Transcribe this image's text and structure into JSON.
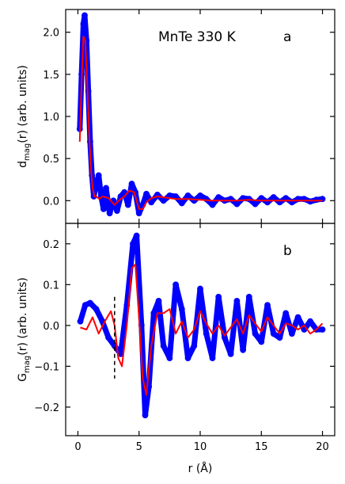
{
  "chart_data": [
    {
      "type": "scatter",
      "panel_label": "a",
      "title": "MnTe   330 K",
      "xlabel": "",
      "ylabel_main": "d",
      "ylabel_sub": "mag",
      "ylabel_rest": "(r) (arb. units)",
      "xlim": [
        -1,
        21
      ],
      "ylim": [
        -0.27,
        2.27
      ],
      "yticks": [
        0.0,
        0.5,
        1.0,
        1.5,
        2.0
      ],
      "ytick_labels": [
        "0.0",
        "0.5",
        "1.0",
        "1.5",
        "2.0"
      ],
      "series": [
        {
          "role": "data",
          "style": "open-circles",
          "color": "#0000ff",
          "x": [
            0.15,
            0.3,
            0.45,
            0.55,
            0.7,
            0.85,
            1.0,
            1.15,
            1.3,
            1.5,
            1.7,
            1.9,
            2.1,
            2.3,
            2.6,
            2.9,
            3.2,
            3.5,
            3.8,
            4.1,
            4.4,
            4.7,
            5.0,
            5.3,
            5.6,
            6.0,
            6.5,
            7.0,
            7.5,
            8.0,
            8.5,
            9.0,
            9.5,
            10.0,
            10.5,
            11.0,
            11.5,
            12.0,
            12.5,
            13.0,
            13.5,
            14.0,
            14.5,
            15.0,
            15.5,
            16.0,
            16.5,
            17.0,
            17.5,
            18.0,
            18.5,
            19.0,
            19.5,
            20.0
          ],
          "y": [
            0.85,
            1.5,
            2.1,
            2.2,
            1.9,
            1.3,
            0.7,
            0.3,
            0.05,
            0.2,
            0.3,
            0.05,
            -0.1,
            0.15,
            -0.15,
            0.0,
            -0.12,
            0.05,
            0.1,
            -0.05,
            0.2,
            0.1,
            -0.15,
            -0.05,
            0.08,
            -0.02,
            0.07,
            0.0,
            0.06,
            0.05,
            -0.03,
            0.06,
            0.0,
            0.06,
            0.02,
            -0.05,
            0.04,
            0.0,
            0.02,
            -0.04,
            0.03,
            0.02,
            -0.04,
            0.03,
            -0.02,
            0.04,
            -0.02,
            0.03,
            -0.02,
            0.02,
            0.02,
            -0.01,
            0.01,
            0.02
          ]
        },
        {
          "role": "fit",
          "style": "line",
          "color": "#ff0000",
          "x": [
            0.15,
            0.3,
            0.45,
            0.6,
            0.75,
            0.9,
            1.05,
            1.2,
            1.35,
            1.5,
            1.75,
            2.0,
            2.5,
            3.0,
            3.5,
            3.8,
            4.2,
            4.6,
            5.0,
            5.3,
            5.6,
            6.0,
            6.5,
            7.0,
            8.0,
            9.0,
            10.0,
            11.0,
            12.0,
            13.0,
            14.0,
            15.0,
            16.0,
            17.0,
            18.0,
            19.0,
            20.0
          ],
          "y": [
            0.7,
            1.4,
            1.95,
            1.9,
            1.45,
            0.85,
            0.4,
            0.15,
            0.05,
            0.05,
            0.02,
            0.05,
            0.03,
            -0.05,
            0.02,
            0.05,
            0.12,
            0.1,
            -0.1,
            -0.1,
            -0.02,
            0.03,
            0.05,
            0.04,
            0.02,
            0.02,
            0.01,
            0.0,
            0.0,
            0.0,
            0.01,
            0.0,
            0.0,
            0.0,
            0.0,
            0.0,
            0.0
          ]
        }
      ]
    },
    {
      "type": "scatter",
      "panel_label": "b",
      "xlabel": "r (Å)",
      "ylabel_main": "G",
      "ylabel_sub": "mag",
      "ylabel_rest": "(r) (arb. units)",
      "xlim": [
        -1,
        21
      ],
      "ylim": [
        -0.27,
        0.25
      ],
      "xticks": [
        0,
        5,
        10,
        15,
        20
      ],
      "xtick_labels": [
        "0",
        "5",
        "10",
        "15",
        "20"
      ],
      "yticks": [
        -0.2,
        -0.1,
        0.0,
        0.1,
        0.2
      ],
      "ytick_labels": [
        "−0.2",
        "−0.1",
        "0.0",
        "0.1",
        "0.2"
      ],
      "vline": {
        "x": 3.0,
        "ymin": -0.13,
        "ymax": 0.07,
        "style": "dashed",
        "color": "#000000"
      },
      "series": [
        {
          "role": "data",
          "style": "open-circles",
          "color": "#0000ff",
          "x": [
            0.2,
            0.6,
            1.0,
            1.5,
            2.0,
            2.5,
            3.0,
            3.5,
            4.0,
            4.5,
            4.8,
            5.2,
            5.5,
            5.8,
            6.2,
            6.6,
            7.0,
            7.5,
            8.0,
            8.5,
            9.0,
            9.5,
            10.0,
            10.5,
            11.0,
            11.5,
            12.0,
            12.5,
            13.0,
            13.5,
            14.0,
            14.5,
            15.0,
            15.5,
            16.0,
            16.5,
            17.0,
            17.5,
            18.0,
            18.5,
            19.0,
            19.5,
            20.0
          ],
          "y": [
            0.01,
            0.05,
            0.055,
            0.04,
            0.01,
            -0.03,
            -0.05,
            -0.07,
            0.05,
            0.2,
            0.22,
            0.0,
            -0.22,
            -0.15,
            0.03,
            0.06,
            -0.05,
            -0.08,
            0.1,
            0.04,
            -0.08,
            -0.05,
            0.09,
            -0.02,
            -0.08,
            0.07,
            -0.03,
            -0.07,
            0.06,
            -0.06,
            0.07,
            -0.02,
            -0.04,
            0.05,
            -0.02,
            -0.03,
            0.03,
            -0.02,
            0.02,
            -0.01,
            0.01,
            -0.01,
            -0.01
          ]
        },
        {
          "role": "fit",
          "style": "line",
          "color": "#ff0000",
          "x": [
            0.2,
            0.7,
            1.2,
            1.7,
            2.2,
            2.7,
            3.0,
            3.3,
            3.6,
            4.0,
            4.4,
            4.7,
            5.0,
            5.3,
            5.6,
            6.0,
            6.5,
            7.0,
            7.5,
            8.0,
            8.5,
            9.0,
            9.5,
            10.0,
            10.5,
            11.0,
            11.5,
            12.0,
            12.5,
            13.0,
            13.5,
            14.0,
            14.5,
            15.0,
            15.5,
            16.0,
            16.5,
            17.0,
            17.5,
            18.0,
            18.5,
            19.0,
            19.5,
            20.0
          ],
          "y": [
            -0.005,
            -0.01,
            0.02,
            -0.02,
            0.01,
            0.035,
            0.0,
            -0.08,
            -0.1,
            0.0,
            0.14,
            0.15,
            0.02,
            -0.13,
            -0.17,
            -0.05,
            0.03,
            0.03,
            0.04,
            -0.02,
            0.01,
            -0.03,
            -0.01,
            0.035,
            0.005,
            -0.02,
            0.0,
            -0.025,
            -0.005,
            0.015,
            -0.02,
            0.025,
            0.005,
            -0.015,
            0.02,
            0.0,
            -0.02,
            0.005,
            0.0,
            -0.01,
            0.0,
            -0.02,
            -0.01,
            0.005
          ]
        }
      ]
    }
  ]
}
